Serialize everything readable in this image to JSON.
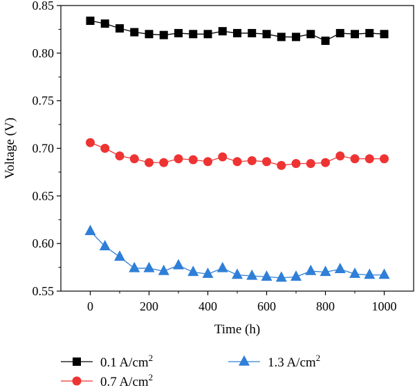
{
  "chart_data": {
    "type": "line",
    "title": "",
    "xlabel": "Time (h)",
    "ylabel": "Voltage (V)",
    "xlim": [
      -100,
      1100
    ],
    "ylim": [
      0.55,
      0.85
    ],
    "xticks": [
      0,
      200,
      400,
      600,
      800,
      1000
    ],
    "xtick_labels": [
      "0",
      "200",
      "400",
      "600",
      "800",
      "1000"
    ],
    "yticks": [
      0.55,
      0.6,
      0.65,
      0.7,
      0.75,
      0.8,
      0.85
    ],
    "ytick_labels": [
      "0.55",
      "0.60",
      "0.65",
      "0.70",
      "0.75",
      "0.80",
      "0.85"
    ],
    "grid": false,
    "legend_position": "bottom",
    "x": [
      0,
      50,
      100,
      150,
      200,
      250,
      300,
      350,
      400,
      450,
      500,
      550,
      600,
      650,
      700,
      750,
      800,
      850,
      900,
      950,
      1000
    ],
    "series": [
      {
        "name": "0.1 A/cm",
        "name_sup": "2",
        "color": "#000000",
        "marker": "square",
        "values": [
          0.834,
          0.831,
          0.826,
          0.822,
          0.82,
          0.819,
          0.821,
          0.82,
          0.82,
          0.823,
          0.821,
          0.821,
          0.82,
          0.817,
          0.817,
          0.82,
          0.813,
          0.821,
          0.82,
          0.821,
          0.82
        ]
      },
      {
        "name": "0.7 A/cm",
        "name_sup": "2",
        "color": "#ee3333",
        "marker": "circle",
        "values": [
          0.706,
          0.7,
          0.692,
          0.689,
          0.685,
          0.685,
          0.689,
          0.688,
          0.686,
          0.691,
          0.686,
          0.687,
          0.686,
          0.682,
          0.684,
          0.684,
          0.685,
          0.692,
          0.689,
          0.689,
          0.689
        ]
      },
      {
        "name": "1.3 A/cm",
        "name_sup": "2",
        "color": "#2f7fd8",
        "marker": "triangle",
        "values": [
          0.613,
          0.597,
          0.586,
          0.574,
          0.574,
          0.571,
          0.577,
          0.57,
          0.568,
          0.574,
          0.567,
          0.566,
          0.565,
          0.564,
          0.565,
          0.571,
          0.57,
          0.573,
          0.568,
          0.567,
          0.567
        ]
      }
    ]
  }
}
